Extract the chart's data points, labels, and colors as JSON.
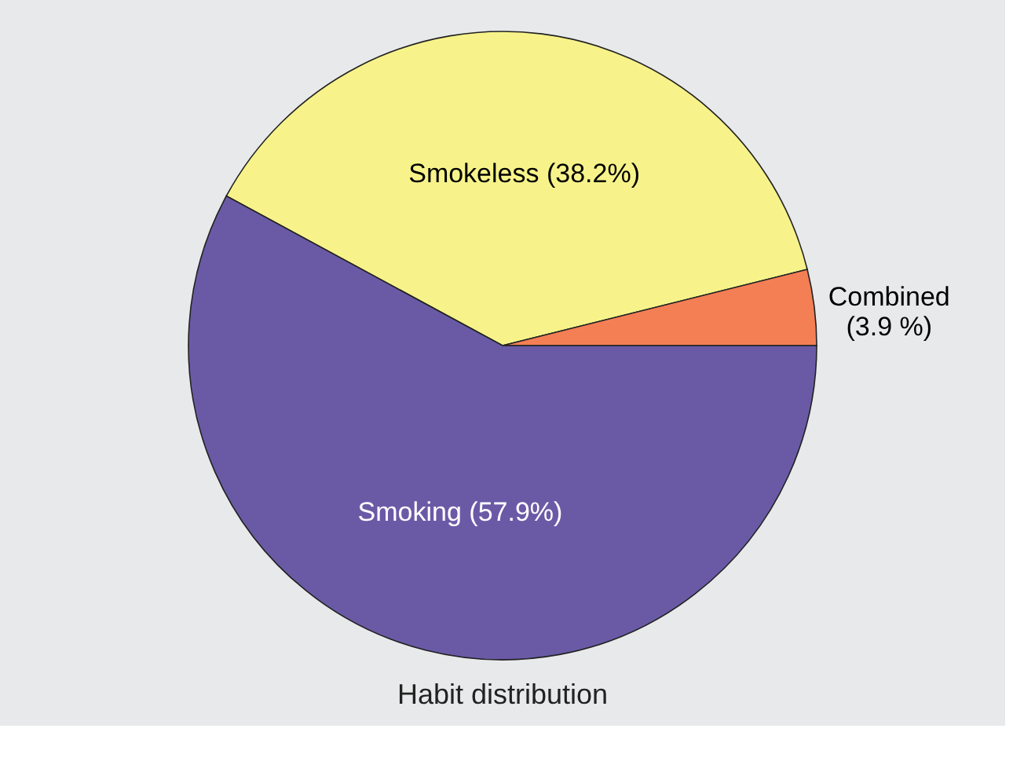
{
  "chart_data": {
    "type": "pie",
    "title": "Habit distribution",
    "categories": [
      "Smokeless",
      "Combined",
      "Smoking"
    ],
    "values": [
      38.2,
      3.9,
      57.9
    ],
    "value_labels": [
      "(38.2%)",
      "(3.9 %)",
      "(57.9%)"
    ],
    "colors": [
      "#f7f38a",
      "#f47f55",
      "#6a5aa6"
    ],
    "legend": false
  }
}
